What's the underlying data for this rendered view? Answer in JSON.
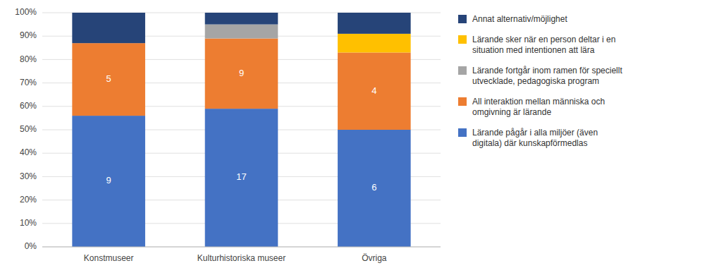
{
  "chart_data": {
    "type": "bar",
    "stacked": true,
    "categories": [
      "Konstmuseer",
      "Kulturhistoriska museer",
      "Övriga"
    ],
    "series": [
      {
        "name": "Lärande pågår i alla miljöer (även\ndigitala) där kunskapförmedlas",
        "color": "#4472C4",
        "values": [
          56,
          59,
          50
        ],
        "counts": [
          9,
          17,
          6
        ]
      },
      {
        "name": "All interaktion mellan människa och\nomgivning är lärande",
        "color": "#ED7D31",
        "values": [
          31,
          30,
          33
        ],
        "counts": [
          5,
          9,
          4
        ]
      },
      {
        "name": "Lärande fortgår inom ramen för speciellt\nutvecklade, pedagogiska program",
        "color": "#A5A5A5",
        "values": [
          0,
          6,
          0
        ]
      },
      {
        "name": "Lärande sker när en person deltar i en\nsituation med intentionen att lära",
        "color": "#FFC000",
        "values": [
          0,
          0,
          8
        ]
      },
      {
        "name": "Annat alternativ/möjlighet",
        "color": "#264478",
        "values": [
          13,
          5,
          9
        ]
      }
    ],
    "ylim": [
      0,
      100
    ],
    "yticks": [
      {
        "value": 0,
        "label": "0%"
      },
      {
        "value": 10,
        "label": "10%"
      },
      {
        "value": 20,
        "label": "20%"
      },
      {
        "value": 30,
        "label": "30%"
      },
      {
        "value": 40,
        "label": "40%"
      },
      {
        "value": 50,
        "label": "50%"
      },
      {
        "value": 60,
        "label": "60%"
      },
      {
        "value": 70,
        "label": "70%"
      },
      {
        "value": 80,
        "label": "80%"
      },
      {
        "value": 90,
        "label": "90%"
      },
      {
        "value": 100,
        "label": "100%"
      }
    ],
    "grid": true,
    "legend": "right"
  }
}
